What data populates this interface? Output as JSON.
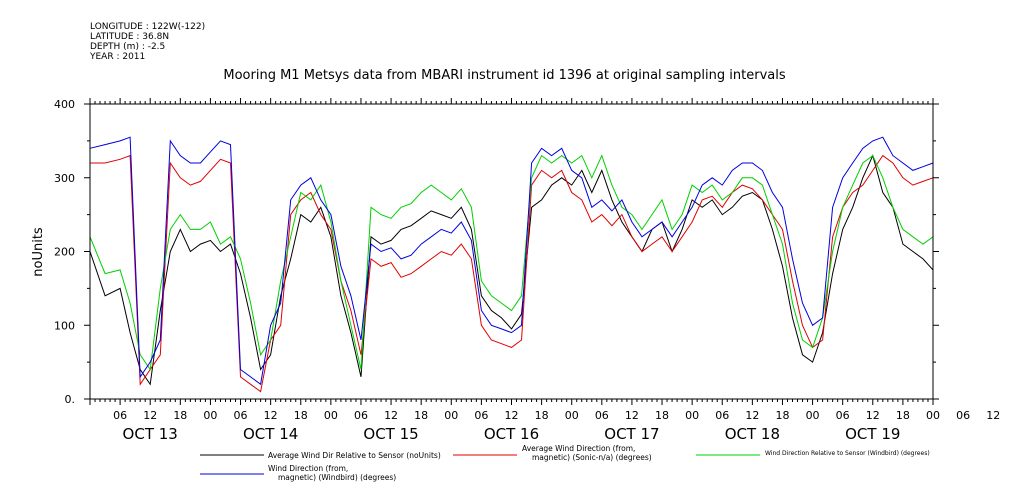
{
  "meta": {
    "longitude": "LONGITUDE : 122W(-122)",
    "latitude": "LATITUDE : 36.8N",
    "depth": "DEPTH (m) : -2.5",
    "year": "YEAR : 2011"
  },
  "chart_data": {
    "type": "line",
    "title": "Mooring M1 Metsys data from MBARI instrument id 1396 at original sampling intervals",
    "ylabel": "noUnits",
    "xlabel": "",
    "ylim": [
      0,
      400
    ],
    "y_ticks": [
      0,
      100,
      200,
      300,
      400
    ],
    "y_tick_labels": [
      "0.",
      "100",
      "200",
      "300",
      "400"
    ],
    "x_range_hours": [
      0,
      168
    ],
    "hour_ticks": [
      "06",
      "12",
      "18",
      "00",
      "06",
      "12",
      "18",
      "00",
      "06",
      "12",
      "18",
      "00",
      "06",
      "12",
      "18",
      "00",
      "06",
      "12",
      "18",
      "00",
      "06",
      "12",
      "18",
      "00",
      "06",
      "12",
      "18",
      "00",
      "06",
      "12",
      "18",
      "00"
    ],
    "day_labels": [
      "OCT 13",
      "OCT 14",
      "OCT 15",
      "OCT 16",
      "OCT 17",
      "OCT 18",
      "OCT 19"
    ],
    "grid": false,
    "legend_position": "bottom",
    "series": [
      {
        "name": "Average Wind Dir Relative to Sensor (noUnits)",
        "color": "#000000",
        "x": [
          0,
          3,
          6,
          8,
          10,
          12,
          14,
          16,
          18,
          20,
          22,
          24,
          26,
          28,
          30,
          32,
          34,
          36,
          38,
          40,
          42,
          44,
          46,
          48,
          50,
          52,
          54,
          56,
          58,
          60,
          62,
          64,
          66,
          68,
          70,
          72,
          74,
          76,
          78,
          80,
          82,
          84,
          86,
          88,
          90,
          92,
          94,
          96,
          98,
          100,
          102,
          104,
          106,
          108,
          110,
          112,
          114,
          116,
          118,
          120,
          122,
          124,
          126,
          128,
          130,
          132,
          134,
          136,
          138,
          140,
          142,
          144,
          146,
          148,
          150,
          152,
          154,
          156,
          158,
          160,
          162,
          164,
          166,
          168
        ],
        "y": [
          200,
          140,
          150,
          90,
          40,
          20,
          120,
          200,
          230,
          200,
          210,
          215,
          200,
          210,
          170,
          110,
          40,
          60,
          140,
          190,
          250,
          240,
          260,
          220,
          140,
          90,
          30,
          220,
          210,
          215,
          230,
          235,
          245,
          255,
          250,
          245,
          260,
          230,
          140,
          120,
          110,
          95,
          115,
          260,
          270,
          290,
          300,
          290,
          310,
          280,
          310,
          270,
          240,
          220,
          200,
          230,
          240,
          200,
          230,
          270,
          260,
          270,
          250,
          260,
          275,
          280,
          270,
          230,
          180,
          110,
          60,
          50,
          90,
          170,
          230,
          260,
          300,
          330,
          280,
          260,
          210,
          200,
          190,
          175
        ]
      },
      {
        "name": "Average Wind Direction (from, magnetic) (Sonic-n/a) (degrees)",
        "color": "#e00000",
        "x": [
          0,
          3,
          6,
          8,
          10,
          12,
          14,
          16,
          18,
          20,
          22,
          24,
          26,
          28,
          30,
          32,
          34,
          36,
          38,
          40,
          42,
          44,
          46,
          48,
          50,
          52,
          54,
          56,
          58,
          60,
          62,
          64,
          66,
          68,
          70,
          72,
          74,
          76,
          78,
          80,
          82,
          84,
          86,
          88,
          90,
          92,
          94,
          96,
          98,
          100,
          102,
          104,
          106,
          108,
          110,
          112,
          114,
          116,
          118,
          120,
          122,
          124,
          126,
          128,
          130,
          132,
          134,
          136,
          138,
          140,
          142,
          144,
          146,
          148,
          150,
          152,
          154,
          156,
          158,
          160,
          162,
          164,
          166,
          168
        ],
        "y": [
          320,
          320,
          325,
          330,
          20,
          40,
          60,
          320,
          300,
          290,
          295,
          310,
          325,
          320,
          30,
          20,
          10,
          80,
          100,
          250,
          270,
          280,
          250,
          230,
          160,
          120,
          60,
          190,
          180,
          185,
          165,
          170,
          180,
          190,
          200,
          195,
          210,
          190,
          100,
          80,
          75,
          70,
          80,
          290,
          310,
          300,
          310,
          280,
          270,
          240,
          250,
          235,
          250,
          220,
          200,
          210,
          220,
          200,
          220,
          240,
          270,
          275,
          260,
          280,
          290,
          285,
          270,
          250,
          230,
          160,
          100,
          70,
          80,
          220,
          260,
          280,
          290,
          310,
          330,
          320,
          300,
          290,
          295,
          300
        ]
      },
      {
        "name": "Wind Direction Relative to Sensor (Windbird) (degrees)",
        "color": "#00d000",
        "x": [
          0,
          3,
          6,
          8,
          10,
          12,
          14,
          16,
          18,
          20,
          22,
          24,
          26,
          28,
          30,
          32,
          34,
          36,
          38,
          40,
          42,
          44,
          46,
          48,
          50,
          52,
          54,
          56,
          58,
          60,
          62,
          64,
          66,
          68,
          70,
          72,
          74,
          76,
          78,
          80,
          82,
          84,
          86,
          88,
          90,
          92,
          94,
          96,
          98,
          100,
          102,
          104,
          106,
          108,
          110,
          112,
          114,
          116,
          118,
          120,
          122,
          124,
          126,
          128,
          130,
          132,
          134,
          136,
          138,
          140,
          142,
          144,
          146,
          148,
          150,
          152,
          154,
          156,
          158,
          160,
          162,
          164,
          166,
          168
        ],
        "y": [
          220,
          170,
          175,
          130,
          60,
          40,
          150,
          230,
          250,
          230,
          230,
          240,
          210,
          220,
          190,
          130,
          60,
          80,
          160,
          220,
          280,
          270,
          290,
          240,
          160,
          100,
          40,
          260,
          250,
          245,
          260,
          265,
          280,
          290,
          280,
          270,
          285,
          260,
          160,
          140,
          130,
          120,
          140,
          300,
          330,
          320,
          330,
          320,
          330,
          300,
          330,
          290,
          260,
          250,
          230,
          250,
          270,
          230,
          250,
          290,
          280,
          290,
          270,
          280,
          300,
          300,
          290,
          250,
          210,
          130,
          80,
          70,
          110,
          200,
          260,
          290,
          320,
          330,
          300,
          260,
          230,
          220,
          210,
          220
        ]
      },
      {
        "name": "Wind Direction (from, magnetic) (Windbird) (degrees)",
        "color": "#0000e0",
        "x": [
          0,
          3,
          6,
          8,
          10,
          12,
          14,
          16,
          18,
          20,
          22,
          24,
          26,
          28,
          30,
          32,
          34,
          36,
          38,
          40,
          42,
          44,
          46,
          48,
          50,
          52,
          54,
          56,
          58,
          60,
          62,
          64,
          66,
          68,
          70,
          72,
          74,
          76,
          78,
          80,
          82,
          84,
          86,
          88,
          90,
          92,
          94,
          96,
          98,
          100,
          102,
          104,
          106,
          108,
          110,
          112,
          114,
          116,
          118,
          120,
          122,
          124,
          126,
          128,
          130,
          132,
          134,
          136,
          138,
          140,
          142,
          144,
          146,
          148,
          150,
          152,
          154,
          156,
          158,
          160,
          162,
          164,
          166,
          168
        ],
        "y": [
          340,
          345,
          350,
          355,
          30,
          50,
          80,
          350,
          330,
          320,
          320,
          335,
          350,
          345,
          40,
          30,
          20,
          100,
          130,
          270,
          290,
          300,
          270,
          250,
          180,
          140,
          80,
          210,
          200,
          205,
          190,
          195,
          210,
          220,
          230,
          225,
          240,
          215,
          120,
          100,
          95,
          90,
          100,
          320,
          340,
          330,
          340,
          310,
          300,
          260,
          270,
          255,
          270,
          240,
          220,
          230,
          240,
          220,
          240,
          260,
          290,
          300,
          290,
          310,
          320,
          320,
          310,
          280,
          260,
          190,
          130,
          100,
          110,
          260,
          300,
          320,
          340,
          350,
          355,
          330,
          320,
          310,
          315,
          320
        ]
      }
    ]
  }
}
